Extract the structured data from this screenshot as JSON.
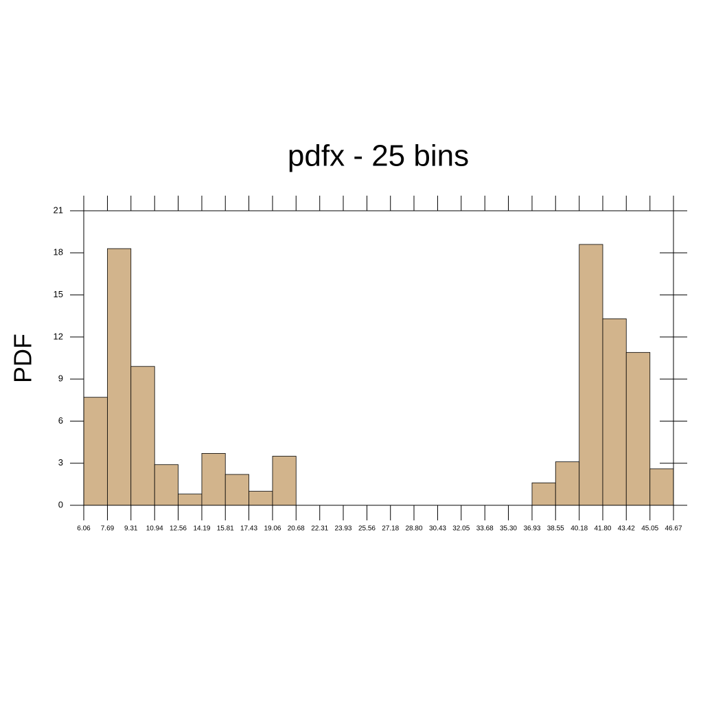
{
  "chart_data": {
    "type": "histogram",
    "title": "pdfx - 25 bins",
    "y_label": "PDF",
    "bins": [
      6.06,
      7.69,
      9.31,
      10.94,
      12.56,
      14.19,
      15.81,
      17.43,
      19.06,
      20.68,
      22.31,
      23.93,
      25.56,
      27.18,
      28.8,
      30.43,
      32.05,
      33.68,
      35.3,
      36.93,
      38.55,
      40.18,
      41.8,
      43.42,
      45.05,
      46.67
    ],
    "values": [
      7.7,
      18.3,
      9.9,
      2.9,
      0.8,
      3.7,
      2.2,
      1.0,
      3.5,
      0,
      0,
      0,
      0,
      0,
      0,
      0,
      0,
      0,
      0,
      1.6,
      3.1,
      18.6,
      13.3,
      10.9,
      2.6
    ],
    "color": "#d2b48c",
    "xlim": [
      6.06,
      46.67
    ],
    "xticks": [
      6.06,
      7.69,
      9.31,
      10.94,
      12.56,
      14.19,
      15.81,
      17.43,
      19.06,
      20.68,
      22.31,
      23.93,
      25.56,
      27.18,
      {
        "value": 28.8,
        "label": "28.80"
      },
      30.43,
      32.05,
      33.68,
      {
        "value": 35.3,
        "label": "35.30"
      },
      36.93,
      38.55,
      40.18,
      {
        "value": 41.8,
        "label": "41.80"
      },
      43.42,
      45.05,
      46.67
    ],
    "ylim": [
      0,
      21
    ],
    "yticks": [
      0,
      3,
      6,
      9,
      12,
      15,
      18,
      21
    ]
  }
}
